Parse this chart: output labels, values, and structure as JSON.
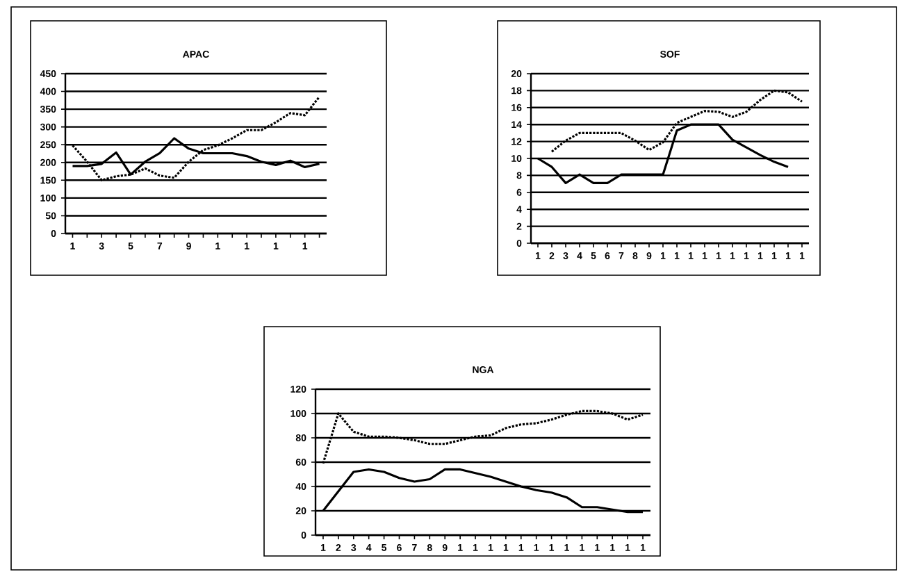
{
  "chart_data": [
    {
      "type": "line",
      "title": "APAC",
      "categories": [
        "1",
        null,
        "3",
        null,
        "5",
        null,
        "7",
        null,
        "9",
        null,
        "1",
        null,
        "1",
        null,
        "1",
        null,
        "1",
        null
      ],
      "ylim": [
        0,
        450
      ],
      "yticks": [
        0,
        50,
        100,
        150,
        200,
        250,
        300,
        350,
        400,
        450
      ],
      "grid": "y",
      "series": [
        {
          "color": "#000000",
          "line_style": "solid",
          "values": [
            190,
            190,
            196,
            228,
            166,
            202,
            226,
            268,
            239,
            226,
            226,
            226,
            218,
            202,
            193,
            205,
            187,
            196
          ]
        },
        {
          "color": "#000000",
          "line_style": "dotted",
          "values": [
            248,
            202,
            150,
            161,
            166,
            183,
            163,
            157,
            202,
            235,
            248,
            268,
            291,
            291,
            313,
            339,
            333,
            385
          ]
        }
      ]
    },
    {
      "type": "line",
      "title": "SOF",
      "categories": [
        "1",
        "2",
        "3",
        "4",
        "5",
        "6",
        "7",
        "8",
        "9",
        "1",
        "1",
        "1",
        "1",
        "1",
        "1",
        "1",
        "1",
        "1",
        "1",
        "1"
      ],
      "ylim": [
        0,
        20
      ],
      "yticks": [
        0,
        2,
        4,
        6,
        8,
        10,
        12,
        14,
        16,
        18,
        20
      ],
      "grid": "y",
      "series": [
        {
          "color": "#000000",
          "line_style": "solid",
          "values": [
            10.0,
            9.0,
            7.1,
            8.1,
            7.1,
            7.1,
            8.1,
            8.1,
            8.1,
            8.1,
            13.3,
            14.0,
            14.0,
            14.0,
            12.2,
            11.3,
            10.4,
            9.6,
            9.0,
            null
          ]
        },
        {
          "color": "#000000",
          "line_style": "dotted",
          "values": [
            null,
            10.8,
            12.1,
            13.0,
            13.0,
            13.0,
            13.0,
            12.1,
            11.0,
            11.9,
            14.2,
            14.9,
            15.6,
            15.5,
            14.9,
            15.5,
            16.9,
            18.0,
            17.8,
            16.7
          ]
        }
      ]
    },
    {
      "type": "line",
      "title": "NGA",
      "categories": [
        "1",
        "2",
        "3",
        "4",
        "5",
        "6",
        "7",
        "8",
        "9",
        "1",
        "1",
        "1",
        "1",
        "1",
        "1",
        "1",
        "1",
        "1",
        "1",
        "1",
        "1",
        "1"
      ],
      "ylim": [
        0,
        120
      ],
      "yticks": [
        0,
        20,
        40,
        60,
        80,
        100,
        120
      ],
      "grid": "y",
      "series": [
        {
          "color": "#000000",
          "line_style": "solid",
          "values": [
            20,
            36,
            52,
            54,
            52,
            47,
            44,
            46,
            54,
            54,
            51,
            48,
            44,
            40,
            37,
            35,
            31,
            23,
            23,
            21,
            19,
            19
          ]
        },
        {
          "color": "#000000",
          "line_style": "dotted",
          "values": [
            59,
            100,
            85,
            81,
            81,
            80,
            78,
            75,
            75,
            78,
            81,
            82,
            88,
            91,
            92,
            95,
            99,
            102,
            102,
            100,
            95,
            99
          ]
        }
      ]
    }
  ]
}
